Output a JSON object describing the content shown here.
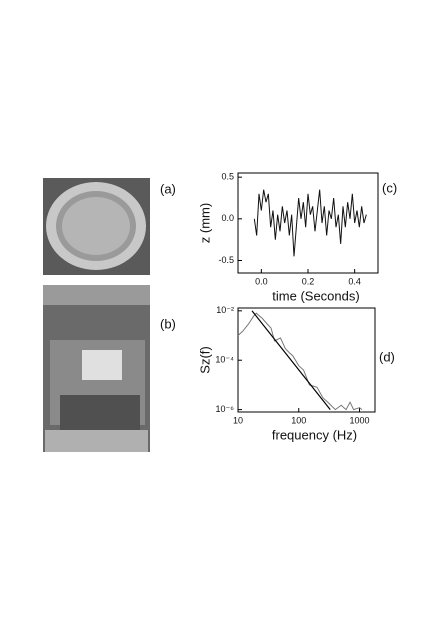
{
  "panels": {
    "a": "(a)",
    "b": "(b)"
  },
  "chart_data": [
    {
      "type": "line",
      "panel": "(c)",
      "x_label": "time (Seconds)",
      "y_label": "z (mm)",
      "x": [
        -0.03,
        -0.02,
        -0.01,
        0,
        0.01,
        0.02,
        0.03,
        0.04,
        0.05,
        0.06,
        0.07,
        0.08,
        0.09,
        0.1,
        0.11,
        0.12,
        0.13,
        0.14,
        0.15,
        0.16,
        0.17,
        0.18,
        0.19,
        0.2,
        0.21,
        0.22,
        0.23,
        0.24,
        0.25,
        0.26,
        0.27,
        0.28,
        0.29,
        0.3,
        0.31,
        0.32,
        0.33,
        0.34,
        0.35,
        0.36,
        0.37,
        0.38,
        0.39,
        0.4,
        0.41,
        0.42,
        0.43,
        0.44,
        0.45
      ],
      "series": [
        {
          "color": "#111111",
          "values": [
            0,
            -0.2,
            0.3,
            0.1,
            0.35,
            0.2,
            0.3,
            -0.1,
            0.1,
            -0.25,
            0.05,
            -0.15,
            0.15,
            -0.05,
            0.1,
            -0.2,
            0.05,
            -0.45,
            -0.1,
            0.25,
            0,
            0.2,
            -0.1,
            0.3,
            0.05,
            0.15,
            -0.15,
            0.1,
            0.35,
            -0.05,
            0.15,
            -0.2,
            0.1,
            0,
            0.25,
            -0.1,
            0.05,
            -0.3,
            0.15,
            -0.1,
            0.2,
            0,
            0.3,
            -0.05,
            0.1,
            -0.1,
            0.15,
            -0.05,
            0.05
          ]
        }
      ],
      "xlim": [
        -0.1,
        0.5
      ],
      "ylim": [
        -0.65,
        0.55
      ],
      "xticks": [
        {
          "value": 0,
          "label": "0.0"
        },
        0.2,
        0.4
      ],
      "yticks": [
        -0.5,
        {
          "value": 0,
          "label": "0.0"
        },
        0.5
      ]
    },
    {
      "type": "line",
      "panel": "(d)",
      "x_label": "frequency (Hz)",
      "y_label": "Sz(f)",
      "log_x": true,
      "log_y": true,
      "series": [
        {
          "color": "#777777",
          "x": [
            10,
            12,
            15,
            18,
            20,
            25,
            30,
            35,
            40,
            50,
            60,
            70,
            80,
            100,
            120,
            150,
            200,
            250,
            300,
            400,
            500,
            600,
            700,
            800,
            1000,
            1100
          ],
          "values": [
            0.001,
            0.0015,
            0.003,
            0.006,
            0.008,
            0.005,
            0.003,
            0.002,
            0.0006,
            0.0008,
            0.0003,
            0.0002,
            0.00015,
            6e-05,
            4e-05,
            1e-05,
            8e-06,
            3e-06,
            2e-06,
            1e-06,
            1.5e-06,
            1e-06,
            2e-06,
            1e-06,
            1.2e-06,
            1e-06
          ]
        },
        {
          "color": "#000000",
          "x": [
            17,
            330
          ],
          "values": [
            0.01,
            1e-06
          ]
        }
      ],
      "xlim": [
        10,
        1800
      ],
      "ylim": [
        8e-07,
        0.013
      ],
      "xticks": [
        10,
        100,
        1000
      ],
      "yticks": [
        {
          "value": 0.01,
          "label": "10⁻²"
        },
        {
          "value": 0.0001,
          "label": "10⁻⁴"
        },
        {
          "value": 1e-06,
          "label": "10⁻⁶"
        }
      ]
    }
  ]
}
